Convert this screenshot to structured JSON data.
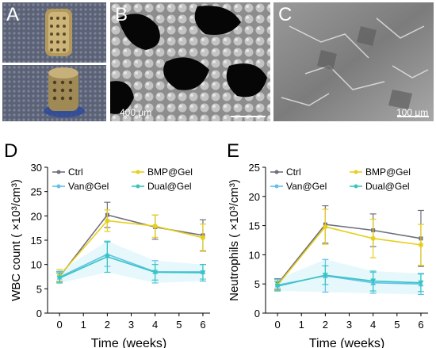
{
  "panels": {
    "a": {
      "letter": "A"
    },
    "b": {
      "letter": "B",
      "scale": "400 μm"
    },
    "c": {
      "letter": "C",
      "scale": "100 μm"
    },
    "d": {
      "letter": "D"
    },
    "e": {
      "letter": "E"
    }
  },
  "colors": {
    "ctrl": "#6f6f7f",
    "bmp": "#e7cf1b",
    "van": "#61c0ea",
    "dual": "#36c6c1"
  },
  "chart_data": [
    {
      "type": "line",
      "panel": "D",
      "xlabel": "Time (weeks)",
      "ylabel": "WBC count ( ×10³/cm³)",
      "x": [
        0,
        2,
        4,
        6
      ],
      "xlim": [
        -0.5,
        6.3
      ],
      "xticks": [
        "0",
        "1",
        "2",
        "3",
        "4",
        "5",
        "6"
      ],
      "ylim": [
        0,
        30
      ],
      "yticks": [
        "0",
        "5",
        "10",
        "15",
        "20",
        "25",
        "30"
      ],
      "legend": [
        "Ctrl",
        "BMP@Gel",
        "Van@Gel",
        "Dual@Gel"
      ],
      "series": [
        {
          "name": "Ctrl",
          "color_key": "ctrl",
          "values": [
            7.5,
            20.2,
            17.7,
            16.0
          ],
          "err": [
            1.0,
            2.6,
            2.5,
            3.2
          ]
        },
        {
          "name": "BMP@Gel",
          "color_key": "bmp",
          "values": [
            7.7,
            19.0,
            17.9,
            15.5
          ],
          "err": [
            1.3,
            2.2,
            2.3,
            2.8
          ]
        },
        {
          "name": "Van@Gel",
          "color_key": "van",
          "values": [
            7.4,
            12.1,
            8.5,
            8.5
          ],
          "err": [
            1.2,
            2.5,
            2.3,
            1.5
          ]
        },
        {
          "name": "Dual@Gel",
          "color_key": "dual",
          "values": [
            7.2,
            11.6,
            8.4,
            8.3
          ],
          "err": [
            1.0,
            3.2,
            1.6,
            1.7
          ]
        }
      ]
    },
    {
      "type": "line",
      "panel": "E",
      "xlabel": "Time (weeks)",
      "ylabel": "Neutrophils ( ×10³/cm³)",
      "x": [
        0,
        2,
        4,
        6
      ],
      "xlim": [
        -0.5,
        6.3
      ],
      "xticks": [
        "0",
        "1",
        "2",
        "3",
        "4",
        "5",
        "6"
      ],
      "ylim": [
        0,
        25
      ],
      "yticks": [
        "0",
        "5",
        "10",
        "15",
        "20",
        "25"
      ],
      "legend": [
        "Ctrl",
        "BMP@Gel",
        "Van@Gel",
        "Dual@Gel"
      ],
      "series": [
        {
          "name": "Ctrl",
          "color_key": "ctrl",
          "values": [
            5.0,
            15.2,
            14.2,
            12.8
          ],
          "err": [
            0.9,
            3.2,
            2.8,
            4.8
          ]
        },
        {
          "name": "BMP@Gel",
          "color_key": "bmp",
          "values": [
            4.8,
            14.8,
            12.8,
            11.7
          ],
          "err": [
            0.9,
            3.0,
            3.3,
            3.5
          ]
        },
        {
          "name": "Van@Gel",
          "color_key": "van",
          "values": [
            4.8,
            6.4,
            5.2,
            5.0
          ],
          "err": [
            1.0,
            2.8,
            1.8,
            1.8
          ]
        },
        {
          "name": "Dual@Gel",
          "color_key": "dual",
          "values": [
            4.6,
            6.5,
            5.5,
            5.2
          ],
          "err": [
            0.8,
            1.6,
            1.7,
            1.5
          ]
        }
      ]
    }
  ]
}
